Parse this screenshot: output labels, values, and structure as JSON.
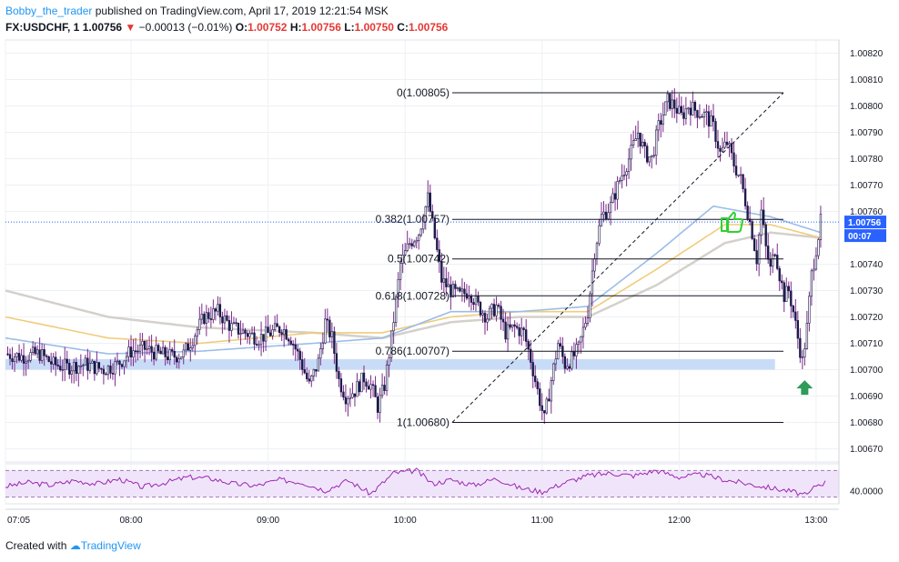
{
  "header": {
    "author": "Bobby_the_trader",
    "published": "published on TradingView.com, April 17, 2019 12:21:54 MSK",
    "symbol": "FX:USDCHF, 1",
    "last": "1.00756",
    "change": "−0.00013 (−0.01%)",
    "o_label": "O:",
    "o_value": "1.00752",
    "h_label": "H:",
    "h_value": "1.00756",
    "l_label": "L:",
    "l_value": "1.00750",
    "c_label": "C:",
    "c_value": "1.00756"
  },
  "footer": {
    "created_with": "Created with",
    "brand": "TradingView"
  },
  "colors": {
    "candle_body": "#1a1a4a",
    "candle_border": "#7a2a8a",
    "ma_blue": "#9bbde8",
    "ma_yellow": "#f0cc7a",
    "ma_grey": "#d4d0cc",
    "support_zone": "#c9dcf7",
    "rsi_line": "#9c27b0",
    "rsi_band": "#f0e4fb",
    "price_tag": "#2962ff",
    "arrow_green": "#2e9b5a",
    "thumb_green": "#2fd12f"
  },
  "icons": {
    "up_arrow": "green-up-arrow-icon",
    "thumbs_up": "thumbs-up-icon"
  },
  "chart_data": {
    "type": "candlestick",
    "x_ticks": [
      "07:05",
      "08:00",
      "09:00",
      "10:00",
      "11:00",
      "12:00",
      "13:00"
    ],
    "x_range_minutes": [
      425,
      790
    ],
    "y_ticks": [
      "1.00820",
      "1.00810",
      "1.00800",
      "1.00790",
      "1.00780",
      "1.00770",
      "1.00760",
      "1.00740",
      "1.00730",
      "1.00720",
      "1.00710",
      "1.00700",
      "1.00690",
      "1.00680",
      "1.00670"
    ],
    "y_range": [
      1.00665,
      1.00825
    ],
    "last_price_label": "1.00756",
    "countdown_label": "00:07",
    "last_price": 1.00756,
    "support_zone": [
      1.007,
      1.00704
    ],
    "fib_levels": [
      {
        "ratio": "0",
        "price": 1.00805,
        "label": "0(1.00805)"
      },
      {
        "ratio": "0.382",
        "price": 1.00757,
        "label": "0.382(1.00757)"
      },
      {
        "ratio": "0.5",
        "price": 1.00742,
        "label": "0.5(1.00742)"
      },
      {
        "ratio": "0.618",
        "price": 1.00728,
        "label": "0.618(1.00728)"
      },
      {
        "ratio": "0.786",
        "price": 1.00707,
        "label": "0.786(1.00707)"
      },
      {
        "ratio": "1",
        "price": 1.0068,
        "label": "1(1.00680)"
      }
    ],
    "fib_trend": {
      "from": [
        624,
        1.0068
      ],
      "to": [
        733,
        1.00805
      ]
    },
    "candle_path": [
      [
        425,
        1.00706
      ],
      [
        432,
        1.00705
      ],
      [
        440,
        1.00706
      ],
      [
        446,
        1.00702
      ],
      [
        452,
        1.00701
      ],
      [
        460,
        1.00702
      ],
      [
        468,
        1.007
      ],
      [
        474,
        1.00702
      ],
      [
        480,
        1.00707
      ],
      [
        486,
        1.00708
      ],
      [
        492,
        1.00706
      ],
      [
        498,
        1.00705
      ],
      [
        503,
        1.00706
      ],
      [
        507,
        1.00712
      ],
      [
        512,
        1.0072
      ],
      [
        518,
        1.00722
      ],
      [
        524,
        1.00716
      ],
      [
        530,
        1.00714
      ],
      [
        536,
        1.00712
      ],
      [
        541,
        1.00714
      ],
      [
        546,
        1.00716
      ],
      [
        550,
        1.00712
      ],
      [
        554,
        1.00704
      ],
      [
        558,
        1.00694
      ],
      [
        562,
        1.00703
      ],
      [
        565,
        1.00718
      ],
      [
        568,
        1.00712
      ],
      [
        571,
        1.00696
      ],
      [
        574,
        1.0069
      ],
      [
        578,
        1.00692
      ],
      [
        582,
        1.00697
      ],
      [
        585,
        1.00694
      ],
      [
        588,
        1.00686
      ],
      [
        591,
        1.00694
      ],
      [
        594,
        1.00712
      ],
      [
        598,
        1.0074
      ],
      [
        602,
        1.00748
      ],
      [
        606,
        1.00752
      ],
      [
        610,
        1.00765
      ],
      [
        613,
        1.0075
      ],
      [
        616,
        1.00734
      ],
      [
        620,
        1.0073
      ],
      [
        624,
        1.00728
      ],
      [
        628,
        1.0073
      ],
      [
        632,
        1.00724
      ],
      [
        636,
        1.0072
      ],
      [
        640,
        1.00724
      ],
      [
        644,
        1.00714
      ],
      [
        648,
        1.00716
      ],
      [
        652,
        1.00714
      ],
      [
        655,
        1.00704
      ],
      [
        658,
        1.00692
      ],
      [
        661,
        1.00681
      ],
      [
        664,
        1.00696
      ],
      [
        667,
        1.0071
      ],
      [
        670,
        1.00702
      ],
      [
        673,
        1.00704
      ],
      [
        676,
        1.00708
      ],
      [
        680,
        1.00722
      ],
      [
        683,
        1.00745
      ],
      [
        686,
        1.00758
      ],
      [
        690,
        1.00762
      ],
      [
        694,
        1.00772
      ],
      [
        698,
        1.0078
      ],
      [
        702,
        1.0079
      ],
      [
        705,
        1.00782
      ],
      [
        708,
        1.0078
      ],
      [
        711,
        1.00792
      ],
      [
        715,
        1.00802
      ],
      [
        718,
        1.008
      ],
      [
        721,
        1.00796
      ],
      [
        724,
        1.008
      ],
      [
        728,
        1.00798
      ],
      [
        732,
        1.00796
      ],
      [
        735,
        1.00792
      ],
      [
        738,
        1.00782
      ],
      [
        741,
        1.00786
      ],
      [
        744,
        1.00778
      ],
      [
        747,
        1.00772
      ],
      [
        750,
        1.0076
      ],
      [
        752,
        1.00752
      ],
      [
        754,
        1.00742
      ],
      [
        756,
        1.0076
      ],
      [
        758,
        1.00746
      ],
      [
        760,
        1.00738
      ],
      [
        762,
        1.00746
      ],
      [
        764,
        1.00736
      ],
      [
        766,
        1.00728
      ],
      [
        768,
        1.0073
      ],
      [
        770,
        1.00722
      ],
      [
        772,
        1.00712
      ],
      [
        774,
        1.00703
      ],
      [
        776,
        1.00716
      ],
      [
        778,
        1.00736
      ],
      [
        780,
        1.00746
      ],
      [
        782,
        1.00756
      ]
    ],
    "ma_blue": [
      [
        425,
        1.00712
      ],
      [
        470,
        1.00706
      ],
      [
        510,
        1.00707
      ],
      [
        560,
        1.0071
      ],
      [
        590,
        1.00712
      ],
      [
        620,
        1.00722
      ],
      [
        650,
        1.00722
      ],
      [
        680,
        1.00724
      ],
      [
        710,
        1.00744
      ],
      [
        735,
        1.00762
      ],
      [
        760,
        1.00758
      ],
      [
        782,
        1.00752
      ]
    ],
    "ma_yellow": [
      [
        425,
        1.0072
      ],
      [
        470,
        1.00712
      ],
      [
        510,
        1.0071
      ],
      [
        560,
        1.00714
      ],
      [
        590,
        1.00714
      ],
      [
        620,
        1.0072
      ],
      [
        650,
        1.00722
      ],
      [
        680,
        1.00722
      ],
      [
        710,
        1.00738
      ],
      [
        740,
        1.00755
      ],
      [
        760,
        1.00755
      ],
      [
        782,
        1.0075
      ]
    ],
    "ma_grey": [
      [
        425,
        1.0073
      ],
      [
        470,
        1.0072
      ],
      [
        510,
        1.00716
      ],
      [
        560,
        1.00714
      ],
      [
        590,
        1.00712
      ],
      [
        620,
        1.00718
      ],
      [
        650,
        1.0072
      ],
      [
        680,
        1.0072
      ],
      [
        710,
        1.00732
      ],
      [
        740,
        1.00748
      ],
      [
        760,
        1.00752
      ],
      [
        782,
        1.0075
      ]
    ],
    "rsi": {
      "level_label": "40.0000",
      "y_range": [
        20,
        80
      ],
      "band": [
        30,
        70
      ],
      "values": [
        [
          425,
          46
        ],
        [
          435,
          52
        ],
        [
          445,
          48
        ],
        [
          455,
          55
        ],
        [
          465,
          50
        ],
        [
          475,
          57
        ],
        [
          485,
          45
        ],
        [
          495,
          52
        ],
        [
          505,
          60
        ],
        [
          515,
          58
        ],
        [
          525,
          50
        ],
        [
          535,
          47
        ],
        [
          545,
          56
        ],
        [
          555,
          52
        ],
        [
          565,
          40
        ],
        [
          575,
          55
        ],
        [
          585,
          35
        ],
        [
          595,
          66
        ],
        [
          605,
          70
        ],
        [
          612,
          50
        ],
        [
          620,
          56
        ],
        [
          630,
          48
        ],
        [
          640,
          58
        ],
        [
          650,
          44
        ],
        [
          660,
          38
        ],
        [
          670,
          52
        ],
        [
          680,
          62
        ],
        [
          690,
          66
        ],
        [
          700,
          62
        ],
        [
          710,
          70
        ],
        [
          720,
          60
        ],
        [
          730,
          64
        ],
        [
          740,
          56
        ],
        [
          750,
          50
        ],
        [
          760,
          44
        ],
        [
          770,
          38
        ],
        [
          776,
          32
        ],
        [
          780,
          48
        ],
        [
          784,
          52
        ]
      ]
    }
  }
}
